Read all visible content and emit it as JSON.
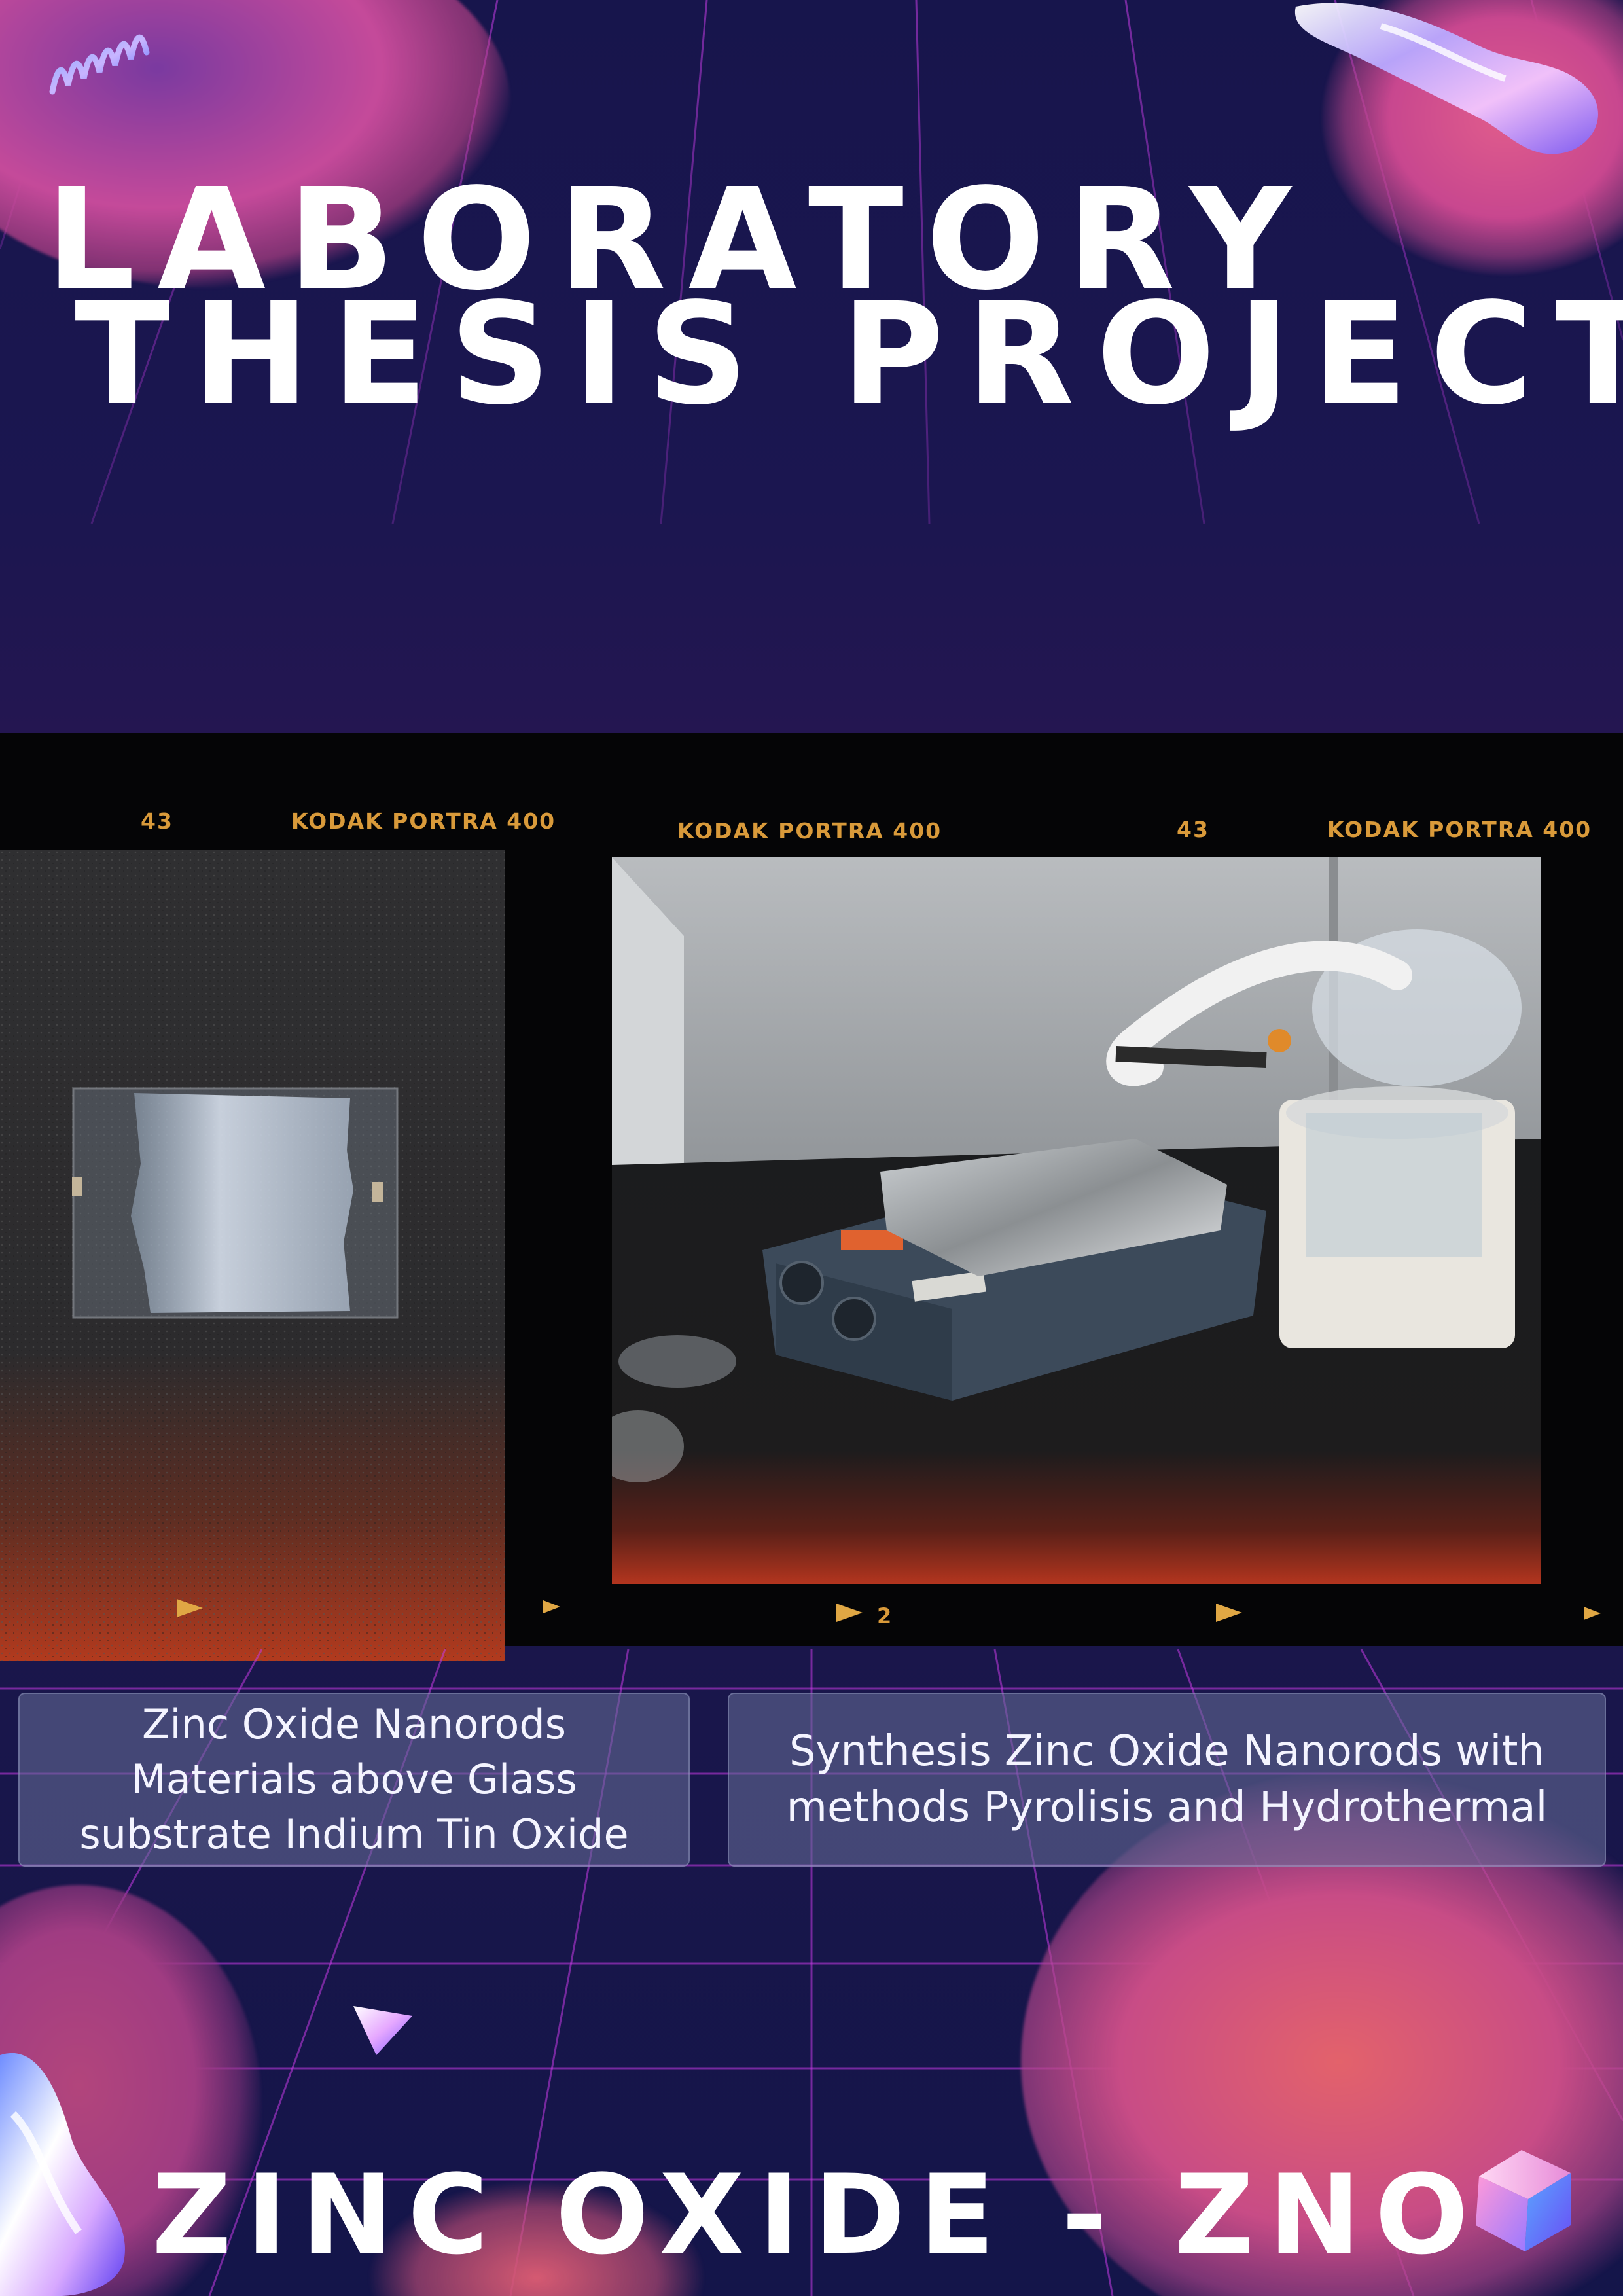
{
  "header": {
    "title_line1": "LABORATORY",
    "title_line2": "THESIS PROJECT"
  },
  "film_strip": {
    "brand_label": "KODAK PORTRA 400",
    "frame_number": "43",
    "frame_counter": "2"
  },
  "photos": [
    {
      "subject": "glass substrate sample"
    },
    {
      "subject": "hotplate stirrer and ultrasonic humidifier setup"
    }
  ],
  "captions": [
    {
      "text": "Zinc Oxide Nanorods\nMaterials above Glass\nsubstrate Indium Tin Oxide"
    },
    {
      "text": "Synthesis Zinc Oxide Nanorods with\nmethods Pyrolisis and Hydrothermal"
    }
  ],
  "footer": {
    "title": "ZINC OXIDE - ZNO"
  },
  "colors": {
    "background": "#17154a",
    "grid": "#c43be3",
    "film": "#050506",
    "film_text": "#d99a3a",
    "blob_pink": "#d94b9b",
    "blob_orange": "#e6607a"
  },
  "icons": [
    "spring-icon",
    "liquid-chrome-icon",
    "pyramid-icon",
    "cube-icon"
  ]
}
